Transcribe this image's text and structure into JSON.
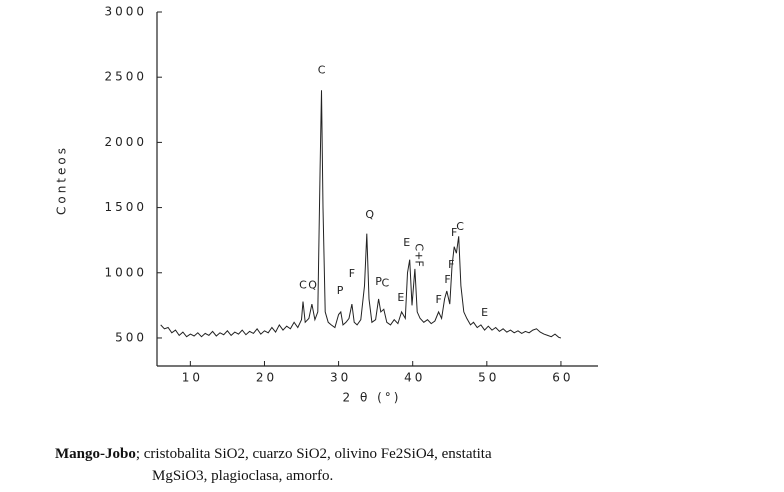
{
  "chart_data": {
    "type": "line",
    "y_label": "Conteos",
    "x_label": "2 θ (°)",
    "xlim": [
      5.5,
      65
    ],
    "xticks": [
      10,
      20,
      30,
      40,
      50,
      60
    ],
    "ylim": [
      285,
      3000
    ],
    "yticks": [
      500,
      1000,
      1500,
      2000,
      2500,
      3000
    ],
    "color": "#222222",
    "x": [
      6,
      6.5,
      7,
      7.5,
      8,
      8.5,
      9,
      9.5,
      10,
      10.5,
      11,
      11.5,
      12,
      12.5,
      13,
      13.5,
      14,
      14.5,
      15,
      15.5,
      16,
      16.5,
      17,
      17.5,
      18,
      18.5,
      19,
      19.5,
      20,
      20.5,
      21,
      21.5,
      22,
      22.5,
      23,
      23.5,
      24,
      24.5,
      25,
      25.2,
      25.5,
      26,
      26.4,
      26.8,
      27.2,
      27.5,
      27.7,
      27.9,
      28.2,
      28.6,
      29,
      29.5,
      30,
      30.3,
      30.6,
      31,
      31.4,
      31.8,
      32.1,
      32.5,
      33,
      33.5,
      33.8,
      34.1,
      34.5,
      35,
      35.4,
      35.7,
      36.1,
      36.5,
      37,
      37.5,
      38,
      38.5,
      39,
      39.3,
      39.6,
      39.9,
      40.3,
      40.6,
      41,
      41.5,
      42,
      42.5,
      43,
      43.5,
      43.9,
      44.3,
      44.6,
      45,
      45.3,
      45.6,
      45.9,
      46.2,
      46.5,
      46.9,
      47.3,
      47.8,
      48.2,
      48.7,
      49.2,
      49.7,
      50.2,
      50.7,
      51.2,
      51.7,
      52.2,
      52.7,
      53.2,
      53.7,
      54.2,
      54.7,
      55.2,
      55.7,
      56.2,
      56.7,
      57.2,
      57.7,
      58.2,
      58.7,
      59.2,
      59.7,
      60
    ],
    "values": [
      600,
      570,
      580,
      540,
      560,
      520,
      545,
      510,
      530,
      515,
      540,
      510,
      535,
      520,
      550,
      515,
      540,
      525,
      555,
      520,
      545,
      530,
      560,
      525,
      550,
      535,
      570,
      530,
      555,
      540,
      580,
      545,
      600,
      560,
      590,
      570,
      620,
      580,
      640,
      780,
      620,
      650,
      760,
      640,
      700,
      1800,
      2400,
      1500,
      700,
      620,
      600,
      580,
      680,
      700,
      600,
      620,
      650,
      760,
      620,
      600,
      640,
      900,
      1300,
      800,
      620,
      640,
      800,
      700,
      720,
      620,
      600,
      640,
      610,
      700,
      650,
      1000,
      1100,
      750,
      1030,
      700,
      650,
      620,
      640,
      610,
      630,
      700,
      650,
      800,
      860,
      760,
      1050,
      1200,
      1150,
      1280,
      900,
      700,
      650,
      600,
      620,
      580,
      600,
      560,
      590,
      560,
      580,
      550,
      570,
      545,
      560,
      540,
      555,
      535,
      550,
      540,
      560,
      570,
      545,
      530,
      520,
      510,
      530,
      505,
      500
    ],
    "annotations": [
      {
        "text": "C",
        "x": 25.2,
        "y": 880
      },
      {
        "text": "Q",
        "x": 26.5,
        "y": 880
      },
      {
        "text": "C",
        "x": 27.7,
        "y": 2530
      },
      {
        "text": "P",
        "x": 30.2,
        "y": 837
      },
      {
        "text": "F",
        "x": 31.8,
        "y": 968
      },
      {
        "text": "Q",
        "x": 34.2,
        "y": 1420
      },
      {
        "text": "P",
        "x": 35.4,
        "y": 906
      },
      {
        "text": "C",
        "x": 36.3,
        "y": 895
      },
      {
        "text": "E",
        "x": 38.4,
        "y": 784
      },
      {
        "text": "E",
        "x": 39.2,
        "y": 1205
      },
      {
        "text": "C+F",
        "x": 40.4,
        "y": 1136
      },
      {
        "text": "F",
        "x": 43.5,
        "y": 768
      },
      {
        "text": "F",
        "x": 44.7,
        "y": 922
      },
      {
        "text": "F",
        "x": 45.2,
        "y": 1037
      },
      {
        "text": "F",
        "x": 45.6,
        "y": 1282
      },
      {
        "text": "C",
        "x": 46.4,
        "y": 1328
      },
      {
        "text": "E",
        "x": 49.7,
        "y": 670
      }
    ]
  },
  "caption": {
    "bold": "Mango-Jobo",
    "line1": "; cristobalita SiO2, cuarzo SiO2, olivino Fe2SiO4, enstatita",
    "line2": "MgSiO3, plagioclasa, amorfo."
  }
}
